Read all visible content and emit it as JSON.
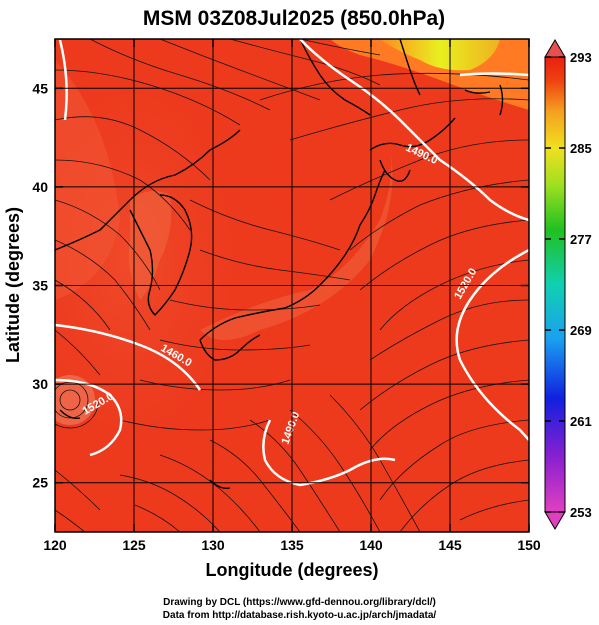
{
  "chart_data": {
    "type": "heatmap",
    "title": "MSM 03Z08Jul2025 (850.0hPa)",
    "xlabel": "Longitude (degrees)",
    "ylabel": "Latitude  (degrees)",
    "xlim": [
      120,
      150
    ],
    "ylim": [
      22.5,
      47.5
    ],
    "x_ticks": [
      "120",
      "125",
      "130",
      "135",
      "140",
      "145",
      "150"
    ],
    "y_ticks": [
      "25",
      "30",
      "35",
      "40",
      "45"
    ],
    "grid": true,
    "colorbar": {
      "min": 253,
      "max": 293,
      "ticks": [
        "293",
        "285",
        "277",
        "269",
        "261",
        "253"
      ]
    },
    "contour_labels": [
      "1490.0",
      "1520.0",
      "1460.0",
      "1520.0",
      "1490.0"
    ],
    "overlays": [
      "temperature shading",
      "wind streamlines",
      "geopotential height contours",
      "coastlines"
    ]
  },
  "credits": {
    "line1": "Drawing by DCL (https://www.gfd-dennou.org/library/dcl/)",
    "line2": "Data from http://database.rish.kyoto-u.ac.jp/arch/jmadata/"
  }
}
